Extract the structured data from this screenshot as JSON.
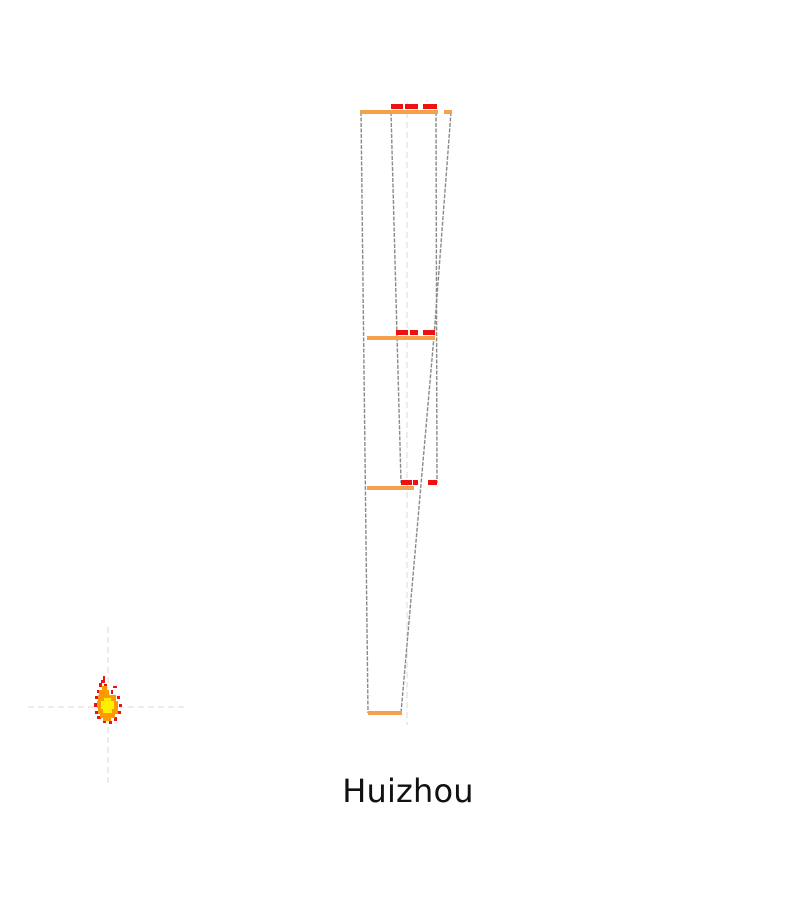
{
  "title": "Huizhou",
  "colors": {
    "level_bar": "#f5a04a",
    "flag": "#ee1111",
    "connector": "#8a8a8a",
    "axis": "#d9d9d9",
    "glyph_outer": "#ee1111",
    "glyph_mid": "#ff9900",
    "glyph_core": "#ffee00"
  }
}
